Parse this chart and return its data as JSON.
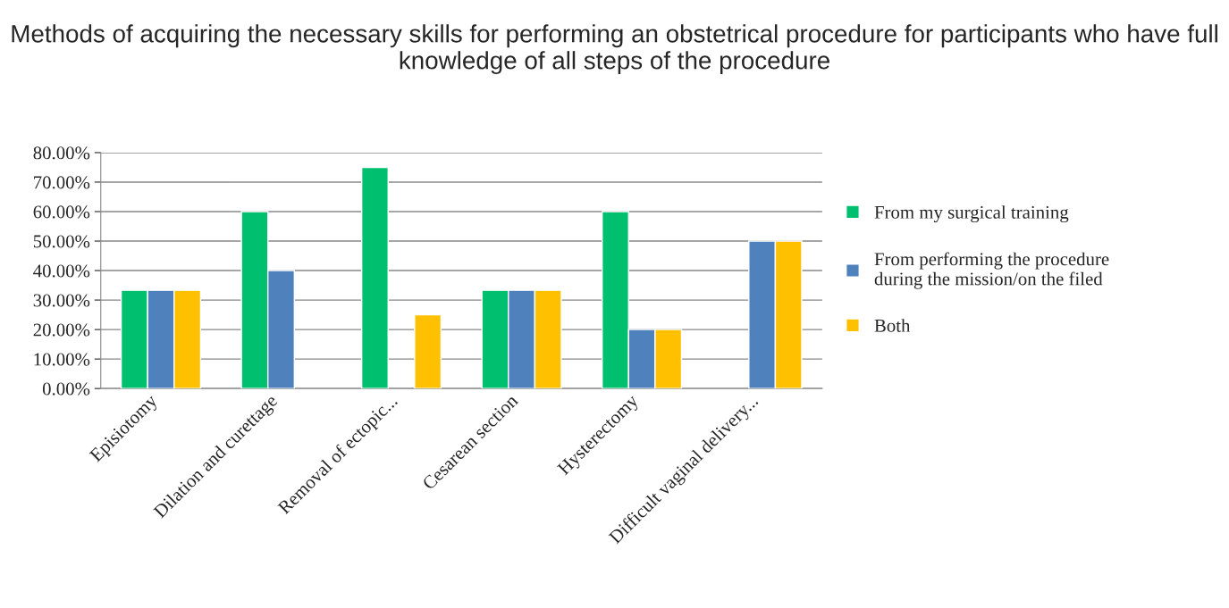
{
  "chart_data": {
    "type": "bar",
    "title": "Methods of acquiring the necessary skills for performing an obstetrical procedure for participants who have full knowledge of all steps of the procedure",
    "categories": [
      "Episiotomy",
      "Dilation and curettage",
      "Removal of ectopic...",
      "Cesarean section",
      "Hysterectomy",
      "Difficult vaginal delivery..."
    ],
    "series": [
      {
        "name": "From my surgical training",
        "color": "#00c06f",
        "values": [
          33.3,
          60,
          75,
          33.3,
          60,
          null
        ]
      },
      {
        "name": "From performing the procedure during the mission/on the filed",
        "color": "#4f81bd",
        "values": [
          33.3,
          40,
          null,
          33.3,
          20,
          50
        ]
      },
      {
        "name": "Both",
        "color": "#ffc000",
        "values": [
          33.3,
          null,
          25,
          33.3,
          20,
          50
        ]
      }
    ],
    "ylim": [
      0,
      80
    ],
    "yticks": [
      {
        "value": 0,
        "label": "0.00%"
      },
      {
        "value": 10,
        "label": "10.00%"
      },
      {
        "value": 20,
        "label": "20.00%"
      },
      {
        "value": 30,
        "label": "30.00%"
      },
      {
        "value": 40,
        "label": "40.00%"
      },
      {
        "value": 50,
        "label": "50.00%"
      },
      {
        "value": 60,
        "label": "60.00%"
      },
      {
        "value": 70,
        "label": "70.00%"
      },
      {
        "value": 80,
        "label": "80.00%"
      }
    ],
    "grid": "y",
    "legend": "right"
  }
}
